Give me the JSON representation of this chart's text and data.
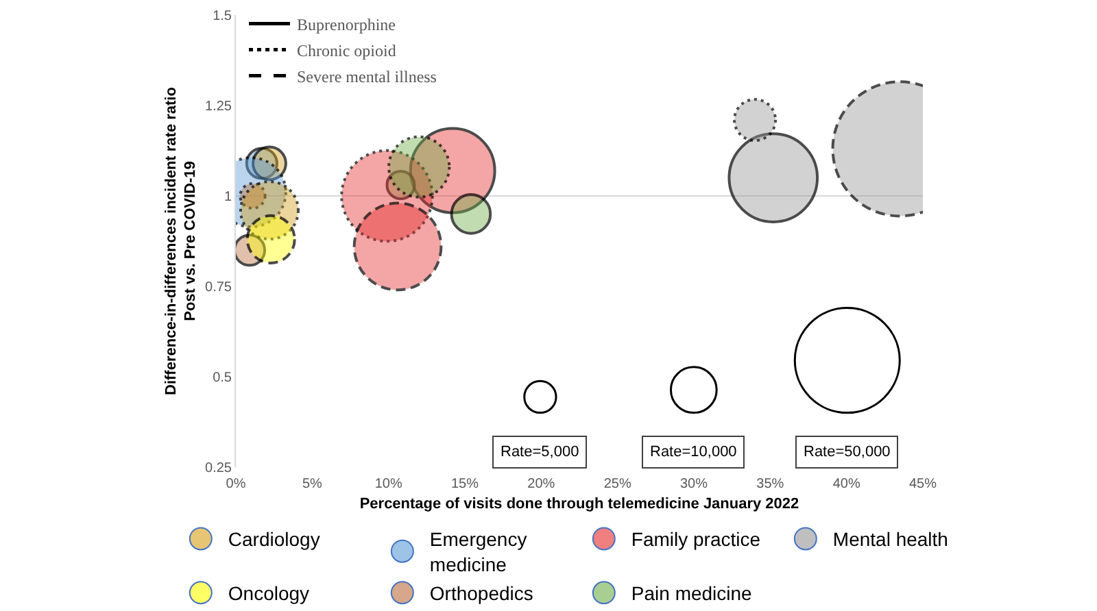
{
  "chart_data": {
    "type": "bubble",
    "xlabel": "Percentage of visits done through telemedicine January 2022",
    "ylabel": "Difference-in-differences incident rate ratio\nPost vs. Pre COVID-19",
    "xlim": [
      0,
      45
    ],
    "xticks": [
      {
        "value": 0,
        "label": "0%"
      },
      {
        "value": 5,
        "label": "5%"
      },
      {
        "value": 10,
        "label": "10%"
      },
      {
        "value": 15,
        "label": "15%"
      },
      {
        "value": 20,
        "label": "20%"
      },
      {
        "value": 25,
        "label": "25%"
      },
      {
        "value": 30,
        "label": "30%"
      },
      {
        "value": 35,
        "label": "35%"
      },
      {
        "value": 40,
        "label": "40%"
      },
      {
        "value": 45,
        "label": "45%"
      }
    ],
    "ylim": [
      0.25,
      1.5
    ],
    "yticks": [
      0.25,
      0.5,
      0.75,
      1,
      1.25,
      1.5
    ],
    "ref_lines": [
      {
        "axis": "y",
        "value": 1,
        "color": "#d9d9d9"
      }
    ],
    "legend": "bottom",
    "size_legend": [
      {
        "value": 5000,
        "label": "Rate=5,000"
      },
      {
        "value": 10000,
        "label": "Rate=10,000"
      },
      {
        "value": 50000,
        "label": "Rate=50,000"
      }
    ],
    "series": [
      {
        "name": "Buprenorphine",
        "line_style": "solid",
        "x": [
          1.7,
          2.2,
          0.9,
          14.2,
          15.4,
          10.8,
          35.2
        ],
        "values": [
          1.09,
          1.09,
          0.85,
          1.07,
          0.95,
          1.03,
          1.05
        ],
        "sizes": [
          4000,
          4700,
          4000,
          31000,
          6600,
          3300,
          34000
        ],
        "colors": [
          "#5b9bd5",
          "#d59e17",
          "#bb6c3c",
          "#e62b2b",
          "#70ad47",
          "#70ad47",
          "#949494"
        ]
      },
      {
        "name": "Chronic opioid",
        "line_style": "dotted",
        "x": [
          1.0,
          1.1,
          2.2,
          9.9,
          12.0,
          34.0
        ],
        "values": [
          1.01,
          1.0,
          0.96,
          1.0,
          1.08,
          1.21
        ],
        "sizes": [
          21000,
          2700,
          14500,
          36000,
          16000,
          7400
        ],
        "colors": [
          "#5b9bd5",
          "#bb6c3c",
          "#d59e17",
          "#e62b2b",
          "#70ad47",
          "#949494"
        ]
      },
      {
        "name": "Severe mental illness",
        "line_style": "dashed",
        "x": [
          10.6,
          2.3,
          43.5
        ],
        "values": [
          0.86,
          0.88,
          1.13
        ],
        "sizes": [
          33000,
          9800,
          79000
        ],
        "colors": [
          "#e62b2b",
          "#ffff00",
          "#949494"
        ]
      },
      {
        "name": "Cardiology",
        "color": "#d59e17"
      },
      {
        "name": "Emergency medicine",
        "color": "#5b9bd5"
      },
      {
        "name": "Family practice",
        "color": "#e62b2b"
      },
      {
        "name": "Mental health",
        "color": "#949494"
      },
      {
        "name": "Oncology",
        "color": "#ffff00"
      },
      {
        "name": "Orthopedics",
        "color": "#bb6c3c"
      },
      {
        "name": "Pain medicine",
        "color": "#70ad47"
      }
    ]
  }
}
